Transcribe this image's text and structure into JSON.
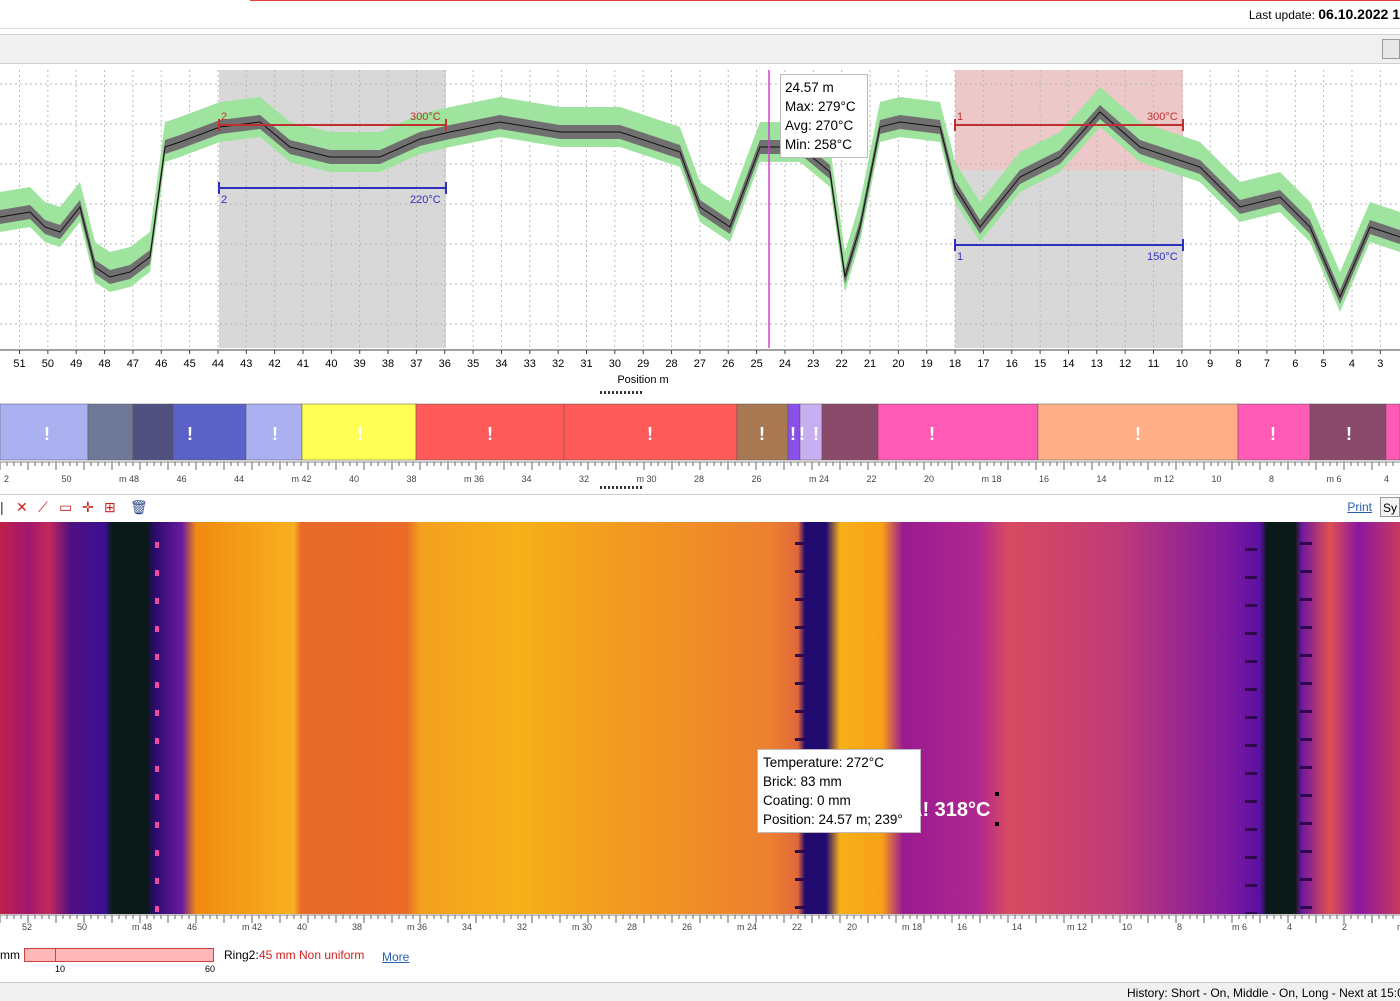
{
  "header": {
    "last_update_label": "Last update:",
    "last_update_value": "06.10.2022 1"
  },
  "profile_chart": {
    "x_axis_label": "Position m",
    "x_ticks": [
      "51",
      "50",
      "49",
      "48",
      "47",
      "46",
      "45",
      "44",
      "43",
      "42",
      "41",
      "40",
      "39",
      "38",
      "37",
      "36",
      "35",
      "34",
      "33",
      "32",
      "31",
      "30",
      "29",
      "28",
      "27",
      "26",
      "25",
      "24",
      "23",
      "22",
      "21",
      "20",
      "19",
      "18",
      "17",
      "16",
      "15",
      "14",
      "13",
      "12",
      "11",
      "10",
      "9",
      "8",
      "7",
      "6",
      "5",
      "4",
      "3"
    ],
    "zone_left": {
      "number": "2",
      "max_label": "300°C",
      "min_label": "220°C"
    },
    "zone_right": {
      "number": "1",
      "max_label": "300°C",
      "min_label": "150°C"
    },
    "colors": {
      "band": "#9ee39e",
      "core": "#707070",
      "max_line": "#c03030",
      "min_line": "#3030c0",
      "cursor": "#d040d0",
      "zone_bg": "#d8d8d8",
      "zone_alarm_bg": "#ecc8c8"
    }
  },
  "cursor_tooltip": {
    "position": "24.57 m",
    "max": "Max: 279°C",
    "avg": "Avg: 270°C",
    "min": "Min: 258°C"
  },
  "zones_strip": {
    "markers": [
      "!",
      "!",
      "!",
      "!",
      "!",
      "!",
      "!",
      "!",
      "!",
      "!",
      "!",
      "!",
      "!",
      "!",
      "!"
    ],
    "ruler_ticks": [
      "2",
      "50",
      "m 48",
      "46",
      "44",
      "m 42",
      "40",
      "38",
      "m 36",
      "34",
      "32",
      "m 30",
      "28",
      "26",
      "m 24",
      "22",
      "20",
      "m 18",
      "16",
      "14",
      "m 12",
      "10",
      "8",
      "m 6",
      "4"
    ]
  },
  "ir_toolbar": {
    "tools": [
      "close-tool",
      "line-tool",
      "rect-tool",
      "cross-tool",
      "resize-tool",
      "delete-tool"
    ],
    "print_label": "Print",
    "sy_label": "Sy"
  },
  "thermal_tooltip": {
    "temperature": "Temperature: 272°C",
    "brick": "Brick: 83 mm",
    "coating": "Coating: 0 mm",
    "position": "Position: 24.57 m; 239°"
  },
  "hotspot": {
    "label": "A! 318°C"
  },
  "thermal_axis_ticks": [
    "52",
    "50",
    "m 48",
    "46",
    "m 42",
    "40",
    "38",
    "m 36",
    "34",
    "32",
    "m 30",
    "28",
    "26",
    "m 24",
    "22",
    "20",
    "m 18",
    "16",
    "14",
    "m 12",
    "10",
    "8",
    "m 6",
    "4",
    "2",
    "m"
  ],
  "bottom": {
    "unit": "mm",
    "ring_bar_min": "10",
    "ring_bar_max": "60",
    "ring2_label": "Ring2:",
    "ring2_value": "45 mm Non uniform",
    "more_link": "More"
  },
  "status": {
    "history": "History: Short - On, Middle - On, Long - Next at 15:00"
  }
}
